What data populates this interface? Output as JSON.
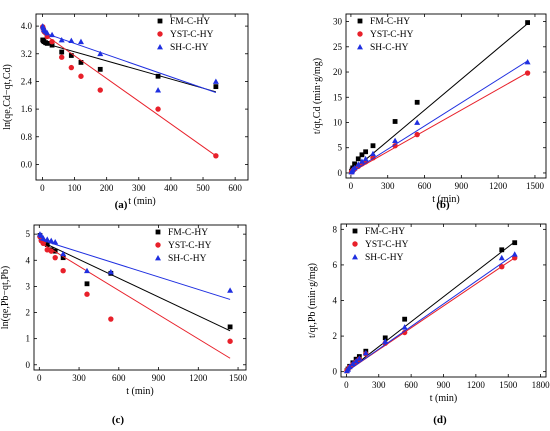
{
  "chart_data": [
    {
      "type": "scatter",
      "panel_label": "(a)",
      "xlabel": "t (min)",
      "ylabel": "ln(qe,Cd−qt,Cd)",
      "xlim": [
        -20,
        640
      ],
      "ylim": [
        -0.45,
        4.35
      ],
      "x_ticks": [
        0,
        100,
        200,
        300,
        400,
        500,
        600
      ],
      "y_ticks": [
        0.0,
        0.8,
        1.6,
        2.4,
        3.2,
        4.0
      ],
      "y_decimals": 1,
      "legend_position": "top-right",
      "series": [
        {
          "name": "FM-C-HY",
          "marker": "square",
          "color": "#000000",
          "x": [
            1,
            3,
            5,
            10,
            15,
            30,
            60,
            90,
            120,
            180,
            360,
            540
          ],
          "y": [
            3.6,
            3.58,
            3.55,
            3.52,
            3.5,
            3.45,
            3.25,
            3.15,
            2.95,
            2.75,
            2.55,
            2.25
          ],
          "fit": {
            "x": [
              0,
              540
            ],
            "y": [
              3.52,
              2.1
            ]
          }
        },
        {
          "name": "YST-C-HY",
          "marker": "circle",
          "color": "#e8202a",
          "x": [
            1,
            3,
            5,
            10,
            15,
            30,
            60,
            90,
            120,
            180,
            360,
            540
          ],
          "y": [
            3.98,
            3.92,
            3.85,
            3.8,
            3.7,
            3.55,
            3.1,
            2.8,
            2.55,
            2.15,
            1.6,
            0.25
          ],
          "fit": {
            "x": [
              0,
              540
            ],
            "y": [
              3.8,
              0.25
            ]
          }
        },
        {
          "name": "SH-C-HY",
          "marker": "triangle",
          "color": "#1f2fe0",
          "x": [
            1,
            3,
            5,
            10,
            15,
            30,
            60,
            90,
            120,
            180,
            360,
            540
          ],
          "y": [
            4.0,
            3.95,
            3.9,
            3.85,
            3.8,
            3.75,
            3.6,
            3.58,
            3.55,
            3.2,
            2.15,
            2.4
          ],
          "fit": {
            "x": [
              0,
              540
            ],
            "y": [
              3.82,
              2.08
            ]
          }
        }
      ]
    },
    {
      "type": "scatter",
      "panel_label": "(b)",
      "xlabel": "t (min)",
      "ylabel": "t/qt,Cd (min·g/mg)",
      "xlim": [
        -40,
        1590
      ],
      "ylim": [
        -1,
        31.5
      ],
      "x_ticks": [
        0,
        300,
        600,
        900,
        1200,
        1500
      ],
      "y_ticks": [
        0,
        5,
        10,
        15,
        20,
        25,
        30
      ],
      "y_decimals": 0,
      "legend_position": "top-left",
      "series": [
        {
          "name": "FM-C-HY",
          "marker": "square",
          "color": "#000000",
          "x": [
            5,
            10,
            15,
            30,
            60,
            90,
            120,
            180,
            360,
            540,
            1440
          ],
          "y": [
            0.3,
            0.6,
            1.0,
            1.8,
            2.8,
            3.6,
            4.2,
            5.4,
            10.2,
            14.0,
            29.8
          ],
          "fit": {
            "x": [
              0,
              1440
            ],
            "y": [
              0.2,
              29.6
            ]
          }
        },
        {
          "name": "YST-C-HY",
          "marker": "circle",
          "color": "#e8202a",
          "x": [
            5,
            10,
            15,
            30,
            60,
            90,
            120,
            180,
            360,
            540,
            1440
          ],
          "y": [
            0.2,
            0.3,
            0.5,
            0.8,
            1.3,
            1.8,
            2.2,
            3.0,
            5.4,
            7.6,
            19.8
          ],
          "fit": {
            "x": [
              0,
              1440
            ],
            "y": [
              0.1,
              19.9
            ]
          }
        },
        {
          "name": "SH-C-HY",
          "marker": "triangle",
          "color": "#1f2fe0",
          "x": [
            5,
            10,
            15,
            30,
            60,
            90,
            120,
            180,
            360,
            540,
            1440
          ],
          "y": [
            0.2,
            0.4,
            0.7,
            1.0,
            1.7,
            2.3,
            2.8,
            3.8,
            6.4,
            10.0,
            22.0
          ],
          "fit": {
            "x": [
              0,
              1440
            ],
            "y": [
              0.1,
              22.2
            ]
          }
        }
      ]
    },
    {
      "type": "scatter",
      "panel_label": "(c)",
      "xlabel": "t (min)",
      "ylabel": "ln(qe,Pb−qt,Pb)",
      "xlim": [
        -40,
        1560
      ],
      "ylim": [
        -0.2,
        5.35
      ],
      "x_ticks": [
        0,
        300,
        600,
        900,
        1200,
        1500
      ],
      "y_ticks": [
        0,
        1,
        2,
        3,
        4,
        5
      ],
      "y_decimals": 0,
      "legend_position": "top-right",
      "series": [
        {
          "name": "FM-C-HY",
          "marker": "square",
          "color": "#000000",
          "x": [
            5,
            15,
            30,
            60,
            90,
            120,
            180,
            360,
            540,
            1440
          ],
          "y": [
            4.95,
            4.8,
            4.7,
            4.6,
            4.4,
            4.35,
            4.1,
            3.1,
            3.5,
            1.45
          ],
          "fit": {
            "x": [
              0,
              1440
            ],
            "y": [
              4.75,
              1.3
            ]
          }
        },
        {
          "name": "YST-C-HY",
          "marker": "circle",
          "color": "#e8202a",
          "x": [
            5,
            15,
            30,
            60,
            90,
            120,
            180,
            360,
            540,
            1440
          ],
          "y": [
            4.9,
            4.75,
            4.65,
            4.4,
            4.35,
            4.1,
            3.6,
            2.7,
            1.75,
            0.9
          ],
          "fit": {
            "x": [
              0,
              1440
            ],
            "y": [
              4.7,
              0.25
            ]
          }
        },
        {
          "name": "SH-C-HY",
          "marker": "triangle",
          "color": "#1f2fe0",
          "x": [
            5,
            15,
            30,
            60,
            90,
            120,
            180,
            360,
            540,
            1440
          ],
          "y": [
            5.0,
            4.95,
            4.85,
            4.8,
            4.75,
            4.7,
            4.25,
            3.6,
            3.55,
            2.85
          ],
          "fit": {
            "x": [
              0,
              1440
            ],
            "y": [
              4.8,
              2.5
            ]
          }
        }
      ]
    },
    {
      "type": "scatter",
      "panel_label": "(d)",
      "xlabel": "t (min)",
      "ylabel": "t/qt,Pb (min·g/mg)",
      "xlim": [
        -50,
        1850
      ],
      "ylim": [
        -0.3,
        8.3
      ],
      "x_ticks": [
        0,
        300,
        600,
        900,
        1200,
        1500,
        1800
      ],
      "y_ticks": [
        0,
        2,
        4,
        6,
        8
      ],
      "y_decimals": 0,
      "legend_position": "top-left",
      "series": [
        {
          "name": "FM-C-HY",
          "marker": "square",
          "color": "#000000",
          "x": [
            5,
            15,
            30,
            60,
            90,
            120,
            180,
            360,
            540,
            1440,
            1560
          ],
          "y": [
            0.05,
            0.15,
            0.3,
            0.5,
            0.7,
            0.85,
            1.15,
            1.9,
            2.95,
            6.85,
            7.25
          ],
          "fit": {
            "x": [
              0,
              1560
            ],
            "y": [
              0.0,
              7.3
            ]
          }
        },
        {
          "name": "YST-C-HY",
          "marker": "circle",
          "color": "#e8202a",
          "x": [
            5,
            15,
            30,
            60,
            90,
            120,
            180,
            360,
            540,
            1440,
            1560
          ],
          "y": [
            0.05,
            0.12,
            0.25,
            0.4,
            0.55,
            0.7,
            1.0,
            1.6,
            2.2,
            5.9,
            6.4
          ],
          "fit": {
            "x": [
              0,
              1560
            ],
            "y": [
              0.0,
              6.4
            ]
          }
        },
        {
          "name": "SH-C-HY",
          "marker": "triangle",
          "color": "#1f2fe0",
          "x": [
            5,
            15,
            30,
            60,
            90,
            120,
            180,
            360,
            540,
            1440,
            1560
          ],
          "y": [
            0.05,
            0.14,
            0.28,
            0.45,
            0.6,
            0.75,
            1.05,
            1.7,
            2.5,
            6.4,
            6.6
          ],
          "fit": {
            "x": [
              0,
              1560
            ],
            "y": [
              0.0,
              6.6
            ]
          }
        }
      ]
    }
  ]
}
